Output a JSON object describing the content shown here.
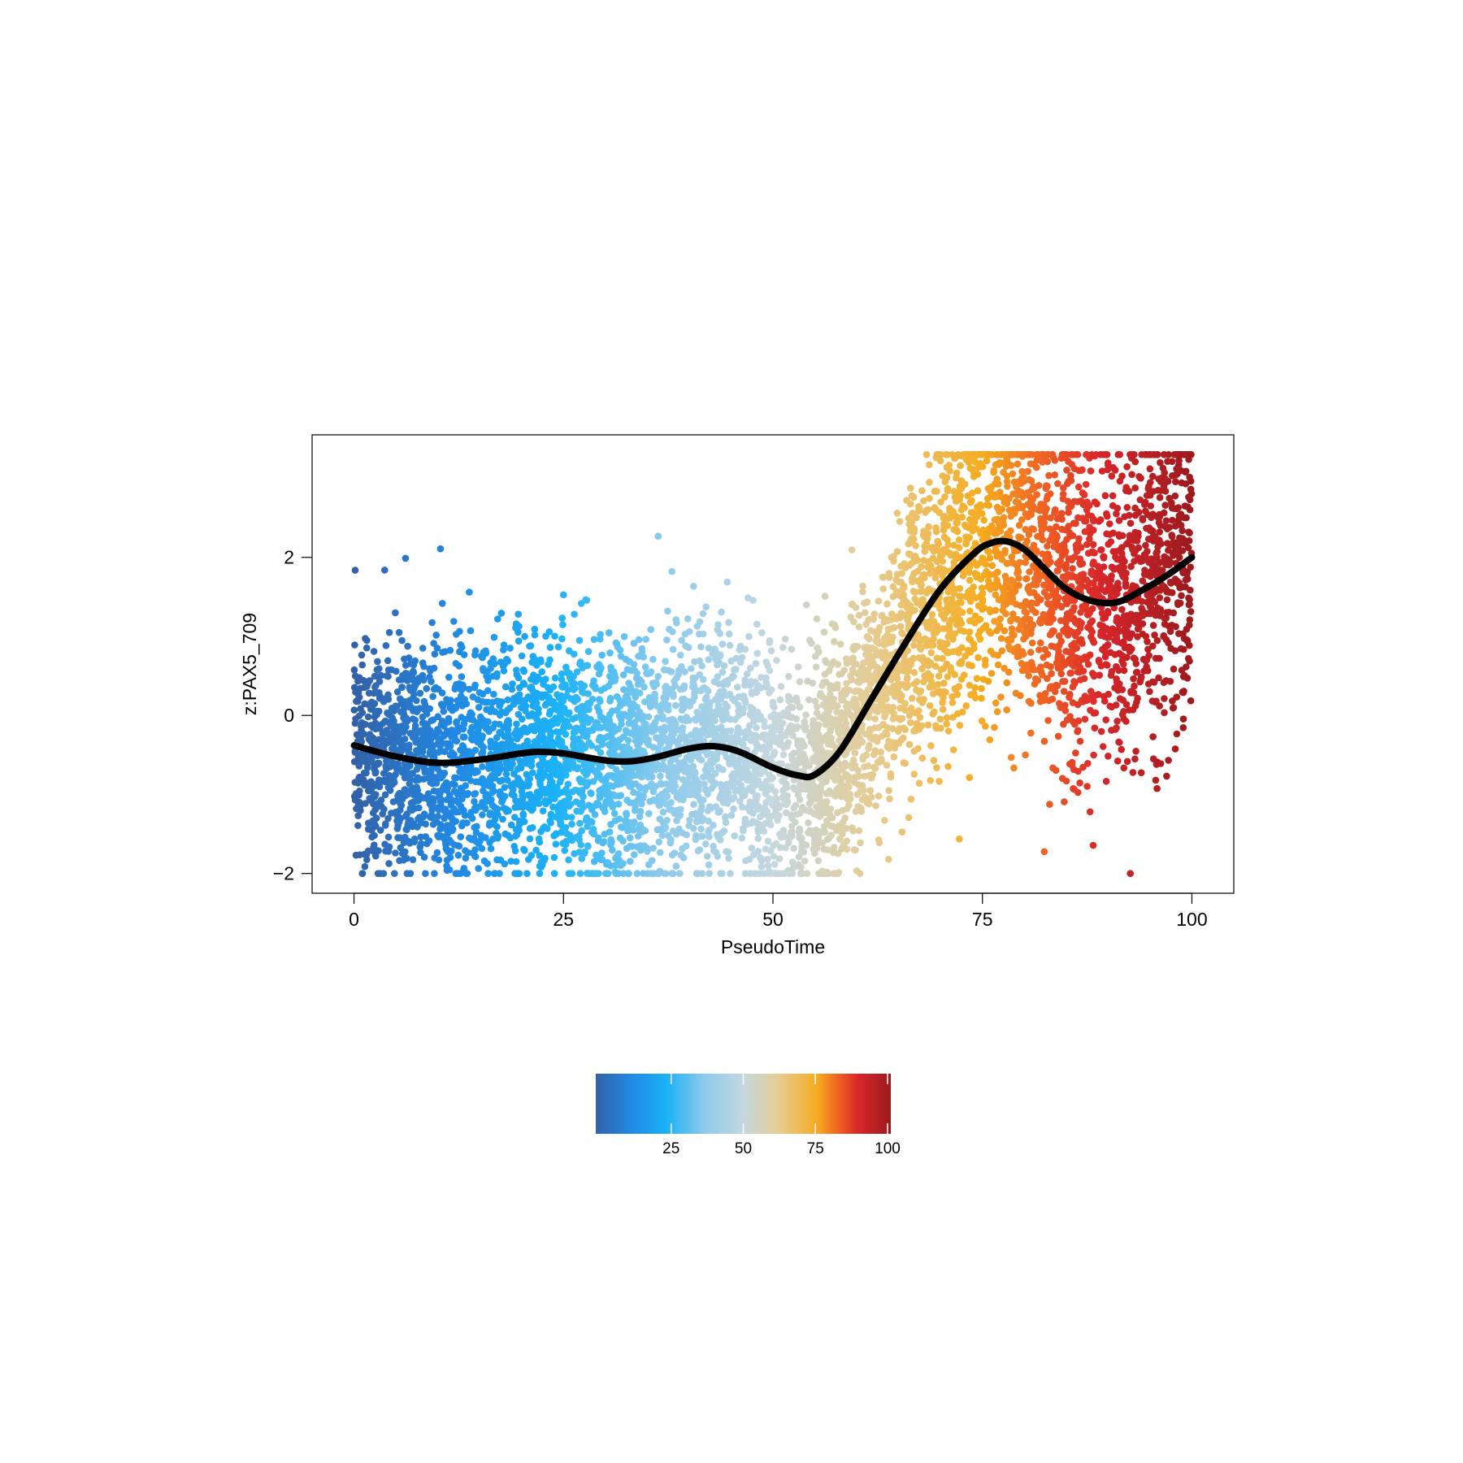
{
  "chart_data": {
    "type": "scatter",
    "title": "",
    "xlabel": "PseudoTime",
    "ylabel": "z:PAX5_709",
    "xlim": [
      -5,
      105
    ],
    "ylim": [
      -2.25,
      3.55
    ],
    "xticks": [
      0,
      25,
      50,
      75,
      100
    ],
    "xtick_labels": [
      "0",
      "25",
      "50",
      "75",
      "100"
    ],
    "yticks": [
      -2,
      0,
      2
    ],
    "ytick_labels": [
      "−2",
      "0",
      "2"
    ],
    "grid": false,
    "n_points": 6500,
    "clip_min": -2.0,
    "clip_max": 3.3,
    "trend_line": {
      "x": [
        0,
        5,
        10,
        15,
        20,
        22,
        25,
        30,
        33,
        36,
        40,
        43,
        46,
        50,
        53,
        55,
        58,
        62,
        66,
        70,
        74,
        76,
        78,
        80,
        82,
        85,
        88,
        91,
        94,
        97,
        100
      ],
      "y": [
        -0.38,
        -0.52,
        -0.6,
        -0.56,
        -0.48,
        -0.46,
        -0.48,
        -0.57,
        -0.58,
        -0.53,
        -0.42,
        -0.39,
        -0.46,
        -0.66,
        -0.76,
        -0.75,
        -0.45,
        0.25,
        0.95,
        1.6,
        2.05,
        2.18,
        2.2,
        2.1,
        1.9,
        1.6,
        1.45,
        1.43,
        1.58,
        1.77,
        2.0
      ],
      "color": "#000000"
    },
    "color_scale": {
      "name": "PseudoTime",
      "stops": [
        {
          "value": 0,
          "color": "#3361a8"
        },
        {
          "value": 12,
          "color": "#2189e3"
        },
        {
          "value": 24,
          "color": "#1ab2f7"
        },
        {
          "value": 37,
          "color": "#8ecbeb"
        },
        {
          "value": 50,
          "color": "#c4d7df"
        },
        {
          "value": 62,
          "color": "#e6cc92"
        },
        {
          "value": 75,
          "color": "#f5ac1f"
        },
        {
          "value": 83,
          "color": "#ee5a24"
        },
        {
          "value": 89,
          "color": "#d7262a"
        },
        {
          "value": 100,
          "color": "#9c1a1e"
        }
      ],
      "range": [
        0,
        100
      ],
      "ticks": [
        25,
        50,
        75,
        100
      ],
      "tick_labels": [
        "25",
        "50",
        "75",
        "100"
      ]
    }
  }
}
